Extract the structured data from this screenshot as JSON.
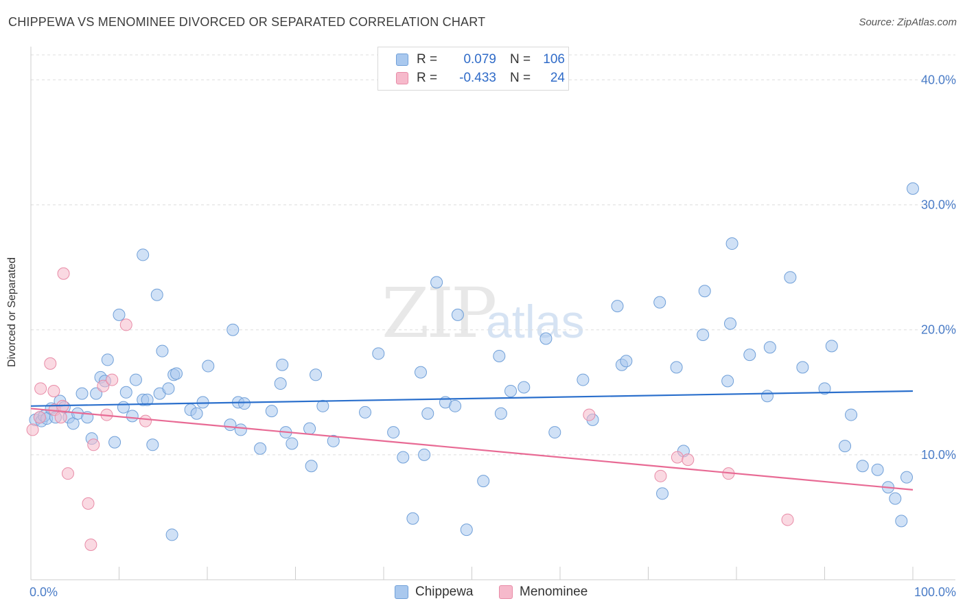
{
  "title": "CHIPPEWA VS MENOMINEE DIVORCED OR SEPARATED CORRELATION CHART",
  "source": "Source: ZipAtlas.com",
  "watermark": {
    "zip": "ZIP",
    "atlas": "atlas"
  },
  "legend": {
    "rows": [
      {
        "r_label": "R =",
        "r_value": "0.079",
        "n_label": "N =",
        "n_value": "106"
      },
      {
        "r_label": "R =",
        "r_value": "-0.433",
        "n_label": "N =",
        "n_value": "24"
      }
    ]
  },
  "bottom_legend": [
    "Chippewa",
    "Menominee"
  ],
  "colors": {
    "chippewa_fill": "#a9c8ee",
    "chippewa_stroke": "#6f9fd8",
    "chippewa_line": "#2a6fcc",
    "menominee_fill": "#f6b9cb",
    "menominee_stroke": "#e88aa6",
    "menominee_line": "#e86a94",
    "tick_text": "#4a7cc7",
    "grid": "#dddddd"
  },
  "chart_data": {
    "type": "scatter",
    "title": "CHIPPEWA VS MENOMINEE DIVORCED OR SEPARATED CORRELATION CHART",
    "xlabel": "",
    "ylabel": "Divorced or Separated",
    "xlim": [
      0,
      100
    ],
    "ylim": [
      0,
      42
    ],
    "x_tick_labels": [
      "0.0%",
      "100.0%"
    ],
    "y_ticks": [
      10,
      20,
      30,
      40
    ],
    "y_tick_labels": [
      "10.0%",
      "20.0%",
      "30.0%",
      "40.0%"
    ],
    "grid": true,
    "legend_position": "top-center",
    "series": [
      {
        "name": "Chippewa",
        "r": 0.079,
        "n": 106,
        "trend": {
          "x": [
            0,
            100
          ],
          "y": [
            13.9,
            15.1
          ]
        },
        "points": [
          [
            0.5,
            12.8
          ],
          [
            1.0,
            13.0
          ],
          [
            1.2,
            12.7
          ],
          [
            1.5,
            13.1
          ],
          [
            1.8,
            12.9
          ],
          [
            2.3,
            13.7
          ],
          [
            2.8,
            13.0
          ],
          [
            3.3,
            14.3
          ],
          [
            3.8,
            13.8
          ],
          [
            4.3,
            13.0
          ],
          [
            4.8,
            12.5
          ],
          [
            5.3,
            13.3
          ],
          [
            5.8,
            14.9
          ],
          [
            6.4,
            13.0
          ],
          [
            6.9,
            11.3
          ],
          [
            7.4,
            14.9
          ],
          [
            7.9,
            16.2
          ],
          [
            8.4,
            15.9
          ],
          [
            8.7,
            17.6
          ],
          [
            9.5,
            11.0
          ],
          [
            10.0,
            21.2
          ],
          [
            10.5,
            13.8
          ],
          [
            10.8,
            15.0
          ],
          [
            11.5,
            13.1
          ],
          [
            11.9,
            16.0
          ],
          [
            12.7,
            14.4
          ],
          [
            12.7,
            26.0
          ],
          [
            13.2,
            14.4
          ],
          [
            13.8,
            10.8
          ],
          [
            14.3,
            22.8
          ],
          [
            14.6,
            14.9
          ],
          [
            14.9,
            18.3
          ],
          [
            15.6,
            15.3
          ],
          [
            16.2,
            16.4
          ],
          [
            16.5,
            16.5
          ],
          [
            16.0,
            3.6
          ],
          [
            18.1,
            13.6
          ],
          [
            18.8,
            13.3
          ],
          [
            19.5,
            14.2
          ],
          [
            20.1,
            17.1
          ],
          [
            22.6,
            12.4
          ],
          [
            22.9,
            20.0
          ],
          [
            23.5,
            14.2
          ],
          [
            23.8,
            12.0
          ],
          [
            24.2,
            14.1
          ],
          [
            26.0,
            10.5
          ],
          [
            27.3,
            13.5
          ],
          [
            28.3,
            15.7
          ],
          [
            28.5,
            17.2
          ],
          [
            28.9,
            11.8
          ],
          [
            29.6,
            10.9
          ],
          [
            31.6,
            12.1
          ],
          [
            31.8,
            9.1
          ],
          [
            32.3,
            16.4
          ],
          [
            33.1,
            13.9
          ],
          [
            34.3,
            11.1
          ],
          [
            37.9,
            13.4
          ],
          [
            39.4,
            18.1
          ],
          [
            41.1,
            11.8
          ],
          [
            42.2,
            9.8
          ],
          [
            43.3,
            4.9
          ],
          [
            44.2,
            16.6
          ],
          [
            44.6,
            10.0
          ],
          [
            45.0,
            13.3
          ],
          [
            46.0,
            23.8
          ],
          [
            47.0,
            14.2
          ],
          [
            48.1,
            13.9
          ],
          [
            48.4,
            21.2
          ],
          [
            49.4,
            4.0
          ],
          [
            51.3,
            7.9
          ],
          [
            53.1,
            17.9
          ],
          [
            53.3,
            13.3
          ],
          [
            54.4,
            15.1
          ],
          [
            55.9,
            15.4
          ],
          [
            58.4,
            19.3
          ],
          [
            59.4,
            11.8
          ],
          [
            62.6,
            16.0
          ],
          [
            63.7,
            12.8
          ],
          [
            66.5,
            21.9
          ],
          [
            67.0,
            17.2
          ],
          [
            67.5,
            17.5
          ],
          [
            71.3,
            22.2
          ],
          [
            71.6,
            6.9
          ],
          [
            73.2,
            17.0
          ],
          [
            74.0,
            10.3
          ],
          [
            76.2,
            19.6
          ],
          [
            76.4,
            23.1
          ],
          [
            79.0,
            15.9
          ],
          [
            79.3,
            20.5
          ],
          [
            79.5,
            26.9
          ],
          [
            81.5,
            18.0
          ],
          [
            83.5,
            14.7
          ],
          [
            83.8,
            18.6
          ],
          [
            86.1,
            24.2
          ],
          [
            87.5,
            17.0
          ],
          [
            90.0,
            15.3
          ],
          [
            90.8,
            18.7
          ],
          [
            92.3,
            10.7
          ],
          [
            93.0,
            13.2
          ],
          [
            94.3,
            9.1
          ],
          [
            96.0,
            8.8
          ],
          [
            97.2,
            7.4
          ],
          [
            98.0,
            6.5
          ],
          [
            98.7,
            4.7
          ],
          [
            99.3,
            8.2
          ],
          [
            100.0,
            31.3
          ]
        ]
      },
      {
        "name": "Menominee",
        "r": -0.433,
        "n": 24,
        "trend": {
          "x": [
            0,
            100
          ],
          "y": [
            13.7,
            7.2
          ]
        },
        "points": [
          [
            0.2,
            12.0
          ],
          [
            1.0,
            13.0
          ],
          [
            1.1,
            15.3
          ],
          [
            2.2,
            17.3
          ],
          [
            2.6,
            15.1
          ],
          [
            2.7,
            13.6
          ],
          [
            3.4,
            13.0
          ],
          [
            3.6,
            13.9
          ],
          [
            3.7,
            24.5
          ],
          [
            4.2,
            8.5
          ],
          [
            6.5,
            6.1
          ],
          [
            6.8,
            2.8
          ],
          [
            7.1,
            10.8
          ],
          [
            8.2,
            15.5
          ],
          [
            8.6,
            13.2
          ],
          [
            9.2,
            16.0
          ],
          [
            10.8,
            20.4
          ],
          [
            13.0,
            12.7
          ],
          [
            63.3,
            13.2
          ],
          [
            71.4,
            8.3
          ],
          [
            73.3,
            9.8
          ],
          [
            74.5,
            9.6
          ],
          [
            79.1,
            8.5
          ],
          [
            85.8,
            4.8
          ]
        ]
      }
    ]
  }
}
